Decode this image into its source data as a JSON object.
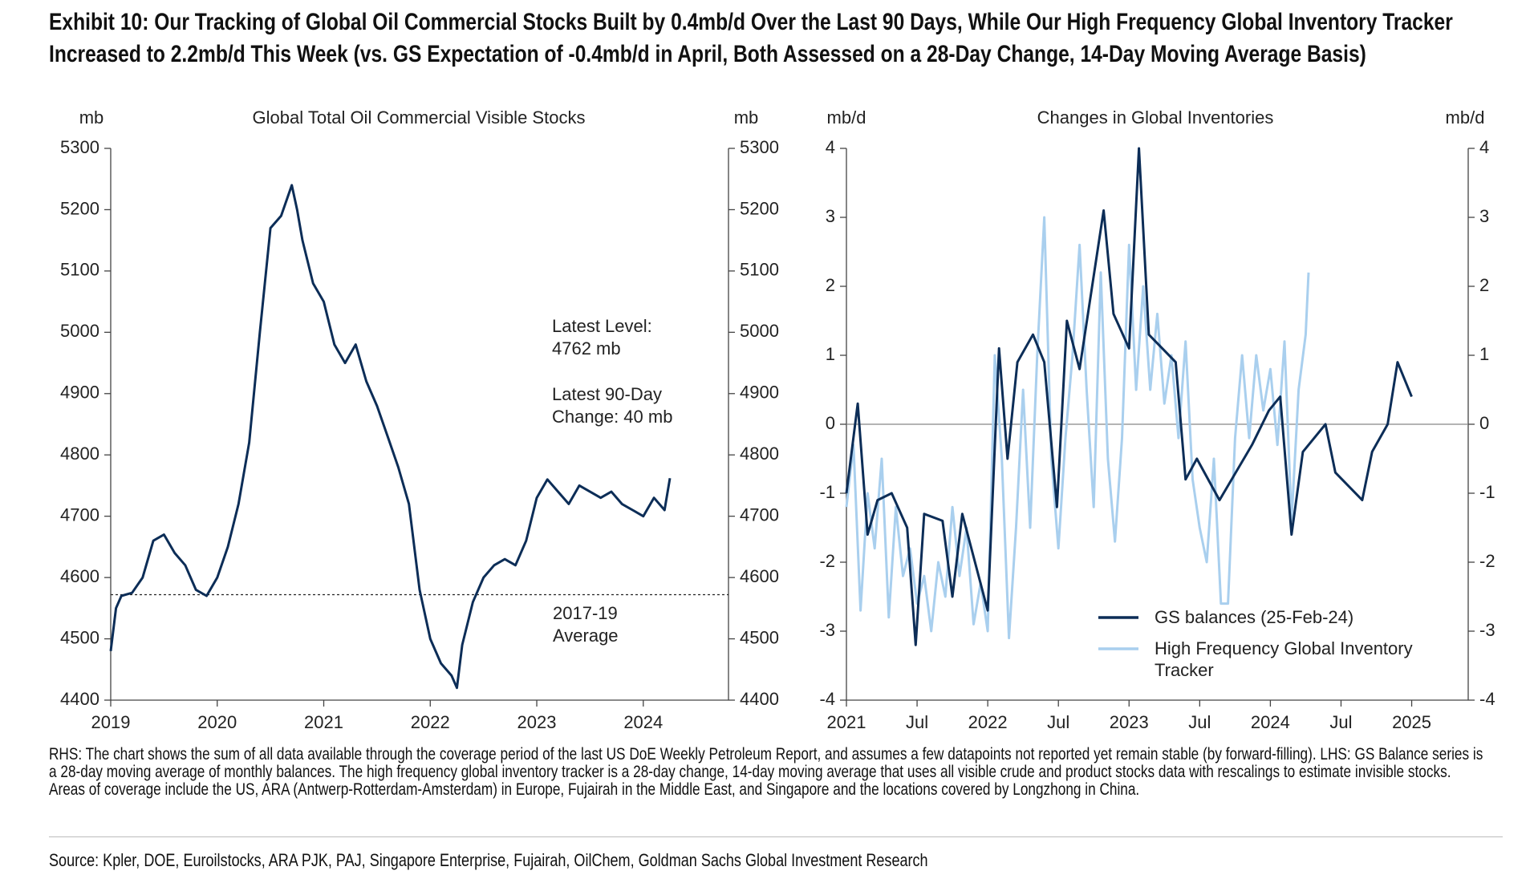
{
  "header": {
    "title": "Exhibit 10: Our Tracking of Global Oil Commercial Stocks Built by 0.4mb/d Over the Last 90 Days, While Our High Frequency Global Inventory Tracker Increased to 2.2mb/d This Week (vs. GS Expectation of -0.4mb/d in April, Both Assessed on a 28-Day Change, 14-Day Moving Average Basis)"
  },
  "chart_data": [
    {
      "type": "line",
      "title": "Global Total Oil Commercial Visible Stocks",
      "y_label": "mb",
      "y2_label": "mb",
      "xlim": [
        2019,
        2024.8
      ],
      "xticks": [
        2019,
        2020,
        2021,
        2022,
        2023,
        2024
      ],
      "ylim": [
        4400,
        5300
      ],
      "yticks": [
        4400,
        4500,
        4600,
        4700,
        4800,
        4900,
        5000,
        5100,
        5200,
        5300
      ],
      "y2lim": [
        4400,
        5300
      ],
      "y2ticks": [
        4400,
        4500,
        4600,
        4700,
        4800,
        4900,
        5000,
        5100,
        5200,
        5300
      ],
      "reference_line": 4572,
      "annotations": [
        {
          "lines": [
            "Latest Level:",
            "4762 mb"
          ]
        },
        {
          "lines": [
            "Latest 90-Day",
            "Change: 40 mb"
          ]
        },
        {
          "lines": [
            "2017-19",
            "Average"
          ]
        }
      ],
      "series": [
        {
          "color": "#0c2d57",
          "x": [
            2019.0,
            2019.05,
            2019.1,
            2019.2,
            2019.3,
            2019.4,
            2019.5,
            2019.6,
            2019.7,
            2019.8,
            2019.9,
            2020.0,
            2020.1,
            2020.2,
            2020.3,
            2020.4,
            2020.5,
            2020.6,
            2020.7,
            2020.75,
            2020.8,
            2020.9,
            2021.0,
            2021.1,
            2021.2,
            2021.3,
            2021.4,
            2021.5,
            2021.6,
            2021.7,
            2021.8,
            2021.9,
            2022.0,
            2022.1,
            2022.2,
            2022.25,
            2022.3,
            2022.4,
            2022.5,
            2022.6,
            2022.7,
            2022.8,
            2022.9,
            2023.0,
            2023.1,
            2023.2,
            2023.3,
            2023.4,
            2023.5,
            2023.6,
            2023.7,
            2023.8,
            2023.9,
            2024.0,
            2024.1,
            2024.2,
            2024.25
          ],
          "values": [
            4480,
            4550,
            4570,
            4575,
            4600,
            4660,
            4670,
            4640,
            4620,
            4580,
            4570,
            4600,
            4650,
            4720,
            4820,
            5000,
            5170,
            5190,
            5240,
            5200,
            5150,
            5080,
            5050,
            4980,
            4950,
            4980,
            4920,
            4880,
            4830,
            4780,
            4720,
            4580,
            4500,
            4460,
            4440,
            4420,
            4490,
            4560,
            4600,
            4620,
            4630,
            4620,
            4660,
            4730,
            4760,
            4740,
            4720,
            4750,
            4740,
            4730,
            4740,
            4720,
            4710,
            4700,
            4730,
            4710,
            4762
          ]
        }
      ]
    },
    {
      "type": "line",
      "title": "Changes in Global Inventories",
      "y_label": "mb/d",
      "y2_label": "mb/d",
      "xlim": [
        2021,
        2025.4
      ],
      "xticks": [
        2021,
        {
          "value": 2021.5,
          "label": "Jul"
        },
        2022,
        {
          "value": 2022.5,
          "label": "Jul"
        },
        2023,
        {
          "value": 2023.5,
          "label": "Jul"
        },
        2024,
        {
          "value": 2024.5,
          "label": "Jul"
        },
        2025
      ],
      "ylim": [
        -4,
        4
      ],
      "yticks": [
        -4,
        -3,
        -2,
        -1,
        0,
        1,
        2,
        3,
        4
      ],
      "y2lim": [
        -4,
        4
      ],
      "y2ticks": [
        -4,
        -3,
        -2,
        -1,
        0,
        1,
        2,
        3,
        4
      ],
      "series": [
        {
          "name": "High Frequency Global Inventory Tracker",
          "color": "#a9cfee",
          "x": [
            2021.0,
            2021.05,
            2021.1,
            2021.15,
            2021.2,
            2021.25,
            2021.3,
            2021.35,
            2021.4,
            2021.45,
            2021.5,
            2021.55,
            2021.6,
            2021.65,
            2021.7,
            2021.75,
            2021.8,
            2021.85,
            2021.9,
            2021.95,
            2022.0,
            2022.05,
            2022.1,
            2022.15,
            2022.2,
            2022.25,
            2022.3,
            2022.35,
            2022.4,
            2022.45,
            2022.5,
            2022.55,
            2022.6,
            2022.65,
            2022.7,
            2022.75,
            2022.8,
            2022.85,
            2022.9,
            2022.95,
            2023.0,
            2023.05,
            2023.1,
            2023.15,
            2023.2,
            2023.25,
            2023.3,
            2023.35,
            2023.4,
            2023.45,
            2023.5,
            2023.55,
            2023.6,
            2023.65,
            2023.7,
            2023.75,
            2023.8,
            2023.85,
            2023.9,
            2023.95,
            2024.0,
            2024.05,
            2024.1,
            2024.15,
            2024.2,
            2024.25,
            2024.27
          ],
          "values": [
            -1.2,
            -0.3,
            -2.7,
            -1.0,
            -1.8,
            -0.5,
            -2.8,
            -1.2,
            -2.2,
            -1.8,
            -2.6,
            -2.2,
            -3.0,
            -2.0,
            -2.5,
            -1.2,
            -2.2,
            -1.5,
            -2.9,
            -2.3,
            -3.0,
            1.0,
            -0.5,
            -3.1,
            -1.5,
            0.5,
            -1.5,
            1.0,
            3.0,
            -0.5,
            -1.8,
            -0.2,
            1.0,
            2.6,
            0.5,
            -1.2,
            2.2,
            -0.5,
            -1.7,
            -0.2,
            2.6,
            0.5,
            2.0,
            0.5,
            1.6,
            0.3,
            1.0,
            -0.2,
            1.2,
            -0.8,
            -1.5,
            -2.0,
            -0.5,
            -2.6,
            -2.6,
            -0.2,
            1.0,
            -0.2,
            1.0,
            0.2,
            0.8,
            -0.3,
            1.2,
            -1.4,
            0.5,
            1.3,
            2.2
          ]
        },
        {
          "name": "GS balances (25-Feb-24)",
          "color": "#0c2d57",
          "x": [
            2021.0,
            2021.08,
            2021.15,
            2021.22,
            2021.32,
            2021.43,
            2021.49,
            2021.55,
            2021.68,
            2021.75,
            2021.82,
            2022.0,
            2022.08,
            2022.14,
            2022.21,
            2022.32,
            2022.4,
            2022.49,
            2022.56,
            2022.65,
            2022.82,
            2022.89,
            2023.0,
            2023.07,
            2023.14,
            2023.33,
            2023.4,
            2023.48,
            2023.64,
            2023.87,
            2023.99,
            2024.07,
            2024.15,
            2024.23,
            2024.39,
            2024.46,
            2024.65,
            2024.72,
            2024.83,
            2024.9,
            2025.0
          ],
          "values": [
            -1.0,
            0.3,
            -1.6,
            -1.1,
            -1.0,
            -1.5,
            -3.2,
            -1.3,
            -1.4,
            -2.5,
            -1.3,
            -2.7,
            1.1,
            -0.5,
            0.9,
            1.3,
            0.9,
            -1.2,
            1.5,
            0.8,
            3.1,
            1.6,
            1.1,
            4.0,
            1.3,
            0.9,
            -0.8,
            -0.5,
            -1.1,
            -0.3,
            0.2,
            0.4,
            -1.6,
            -0.4,
            0.0,
            -0.7,
            -1.1,
            -0.4,
            0.0,
            0.9,
            0.4
          ]
        }
      ]
    }
  ],
  "footnote": "RHS: The chart shows the sum of all data available through the coverage period of the last US DoE Weekly Petroleum Report, and assumes a few datapoints not reported yet remain stable (by forward-filling). LHS: GS Balance series is a 28-day moving average of monthly balances. The high frequency global inventory tracker is a 28-day change, 14-day moving average that uses all visible crude and product stocks data with rescalings to estimate invisible stocks. Areas of coverage include the US, ARA (Antwerp-Rotterdam-Amsterdam) in Europe, Fujairah in the Middle East, and Singapore and the locations covered by Longzhong in China.",
  "source": "Source: Kpler, DOE, Euroilstocks, ARA PJK, PAJ, Singapore Enterprise, Fujairah, OilChem, Goldman Sachs Global Investment Research"
}
